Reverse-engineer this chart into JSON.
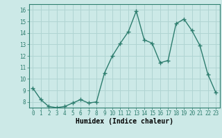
{
  "x": [
    0,
    1,
    2,
    3,
    4,
    5,
    6,
    7,
    8,
    9,
    10,
    11,
    12,
    13,
    14,
    15,
    16,
    17,
    18,
    19,
    20,
    21,
    22,
    23
  ],
  "y": [
    9.2,
    8.2,
    7.6,
    7.5,
    7.6,
    7.9,
    8.2,
    7.9,
    8.0,
    10.5,
    12.0,
    13.1,
    14.1,
    15.9,
    13.4,
    13.1,
    11.4,
    11.6,
    14.8,
    15.2,
    14.2,
    12.9,
    10.4,
    8.8
  ],
  "line_color": "#2d7d6e",
  "marker": "+",
  "marker_size": 4,
  "marker_edge_width": 1.0,
  "bg_color": "#cce9e7",
  "grid_color": "#b0d4d2",
  "xlabel": "Humidex (Indice chaleur)",
  "xlim": [
    -0.5,
    23.5
  ],
  "ylim": [
    7.5,
    16.5
  ],
  "yticks": [
    8,
    9,
    10,
    11,
    12,
    13,
    14,
    15,
    16
  ],
  "xticks": [
    0,
    1,
    2,
    3,
    4,
    5,
    6,
    7,
    8,
    9,
    10,
    11,
    12,
    13,
    14,
    15,
    16,
    17,
    18,
    19,
    20,
    21,
    22,
    23
  ],
  "tick_fontsize": 5.5,
  "label_fontsize": 7.0,
  "line_width": 1.0
}
